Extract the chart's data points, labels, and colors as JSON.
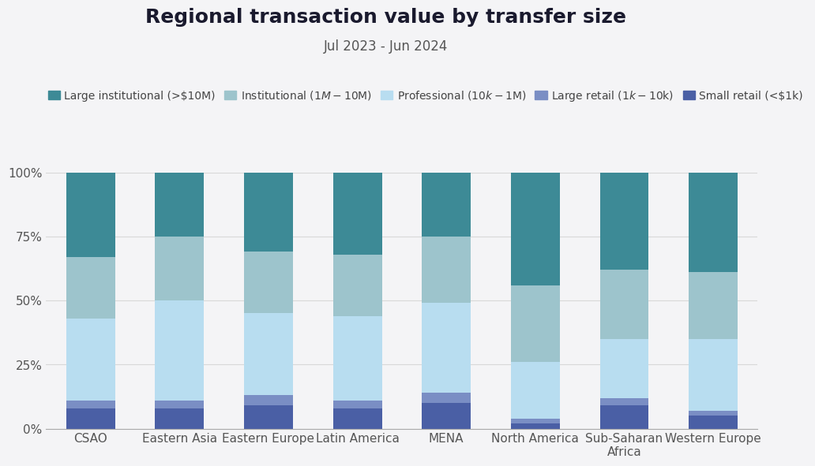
{
  "title": "Regional transaction value by transfer size",
  "subtitle": "Jul 2023 - Jun 2024",
  "categories": [
    "CSAO",
    "Eastern Asia",
    "Eastern Europe",
    "Latin America",
    "MENA",
    "North America",
    "Sub-Saharan\nAfrica",
    "Western Europe"
  ],
  "series": {
    "Small retail (<$1k)": [
      0.08,
      0.08,
      0.09,
      0.08,
      0.1,
      0.02,
      0.09,
      0.05
    ],
    "Large retail ($1k-$10k)": [
      0.03,
      0.03,
      0.04,
      0.03,
      0.04,
      0.02,
      0.03,
      0.02
    ],
    "Professional ($10k-$1M)": [
      0.32,
      0.39,
      0.32,
      0.33,
      0.35,
      0.22,
      0.23,
      0.28
    ],
    "Institutional ($1M-$10M)": [
      0.24,
      0.25,
      0.24,
      0.24,
      0.26,
      0.3,
      0.27,
      0.26
    ],
    "Large institutional (>$10M)": [
      0.33,
      0.25,
      0.31,
      0.32,
      0.25,
      0.44,
      0.38,
      0.39
    ]
  },
  "colors": {
    "Small retail (<$1k)": "#4a5fa5",
    "Large retail ($1k-$10k)": "#7a8ec4",
    "Professional ($10k-$1M)": "#b8ddf0",
    "Institutional ($1M-$10M)": "#9dc4cc",
    "Large institutional (>$10M)": "#3d8a96"
  },
  "legend_order": [
    "Large institutional (>$10M)",
    "Institutional ($1M-$10M)",
    "Professional ($10k-$1M)",
    "Large retail ($1k-$10k)",
    "Small retail (<$1k)"
  ],
  "background_color": "#f4f4f6",
  "bar_width": 0.55,
  "ylim": [
    0,
    1.0
  ],
  "yticks": [
    0,
    0.25,
    0.5,
    0.75,
    1.0
  ],
  "yticklabels": [
    "0%",
    "25%",
    "50%",
    "75%",
    "100%"
  ],
  "title_fontsize": 18,
  "subtitle_fontsize": 12,
  "tick_fontsize": 11,
  "legend_fontsize": 10
}
